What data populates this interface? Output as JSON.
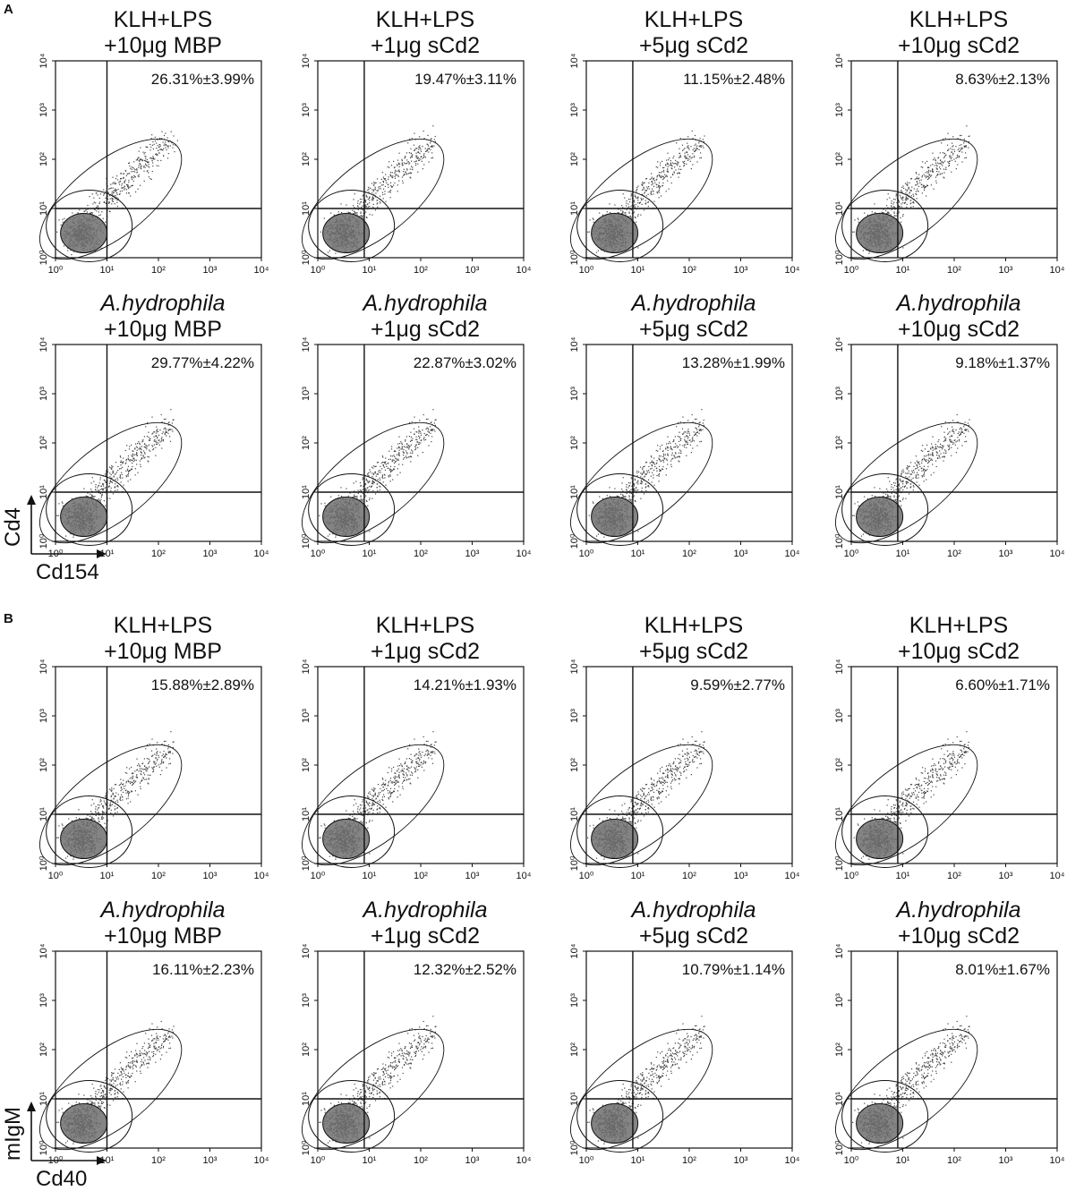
{
  "figure": {
    "panels": [
      {
        "letter": "A",
        "x_marker": "Cd154",
        "y_marker": "Cd4"
      },
      {
        "letter": "B",
        "x_marker": "Cd40",
        "y_marker": "mIgM"
      }
    ]
  },
  "chart_data": [
    {
      "type": "scatter",
      "panel": "A",
      "title": [
        "KLH+LPS",
        "+10μg MBP"
      ],
      "title_italic": false,
      "percentage": "26.31%±3.99%",
      "xlabel": "Cd154",
      "ylabel": "Cd4",
      "xscale": "log",
      "yscale": "log",
      "xlim": [
        1,
        10000
      ],
      "ylim": [
        1,
        10000
      ],
      "x_ticks": [
        "10⁰",
        "10¹",
        "10²",
        "10³",
        "10⁴"
      ],
      "y_ticks": [
        "10⁰",
        "10¹",
        "10²",
        "10³",
        "10⁴"
      ],
      "gate": {
        "x": 10,
        "y": 10
      }
    },
    {
      "type": "scatter",
      "panel": "A",
      "title": [
        "KLH+LPS",
        "+1μg sCd2"
      ],
      "title_italic": false,
      "percentage": "19.47%±3.11%",
      "xlabel": "Cd154",
      "ylabel": "Cd4",
      "xscale": "log",
      "yscale": "log",
      "xlim": [
        1,
        10000
      ],
      "ylim": [
        1,
        10000
      ],
      "x_ticks": [
        "10⁰",
        "10¹",
        "10²",
        "10³",
        "10⁴"
      ],
      "y_ticks": [
        "10⁰",
        "10¹",
        "10²",
        "10³",
        "10⁴"
      ],
      "gate": {
        "x": 8,
        "y": 10
      }
    },
    {
      "type": "scatter",
      "panel": "A",
      "title": [
        "KLH+LPS",
        "+5μg sCd2"
      ],
      "title_italic": false,
      "percentage": "11.15%±2.48%",
      "xlabel": "Cd154",
      "ylabel": "Cd4",
      "xscale": "log",
      "yscale": "log",
      "xlim": [
        1,
        10000
      ],
      "ylim": [
        1,
        10000
      ],
      "x_ticks": [
        "10⁰",
        "10¹",
        "10²",
        "10³",
        "10⁴"
      ],
      "y_ticks": [
        "10⁰",
        "10¹",
        "10²",
        "10³",
        "10⁴"
      ],
      "gate": {
        "x": 8,
        "y": 10
      }
    },
    {
      "type": "scatter",
      "panel": "A",
      "title": [
        "KLH+LPS",
        "+10μg sCd2"
      ],
      "title_italic": false,
      "percentage": "8.63%±2.13%",
      "xlabel": "Cd154",
      "ylabel": "Cd4",
      "xscale": "log",
      "yscale": "log",
      "xlim": [
        1,
        10000
      ],
      "ylim": [
        1,
        10000
      ],
      "x_ticks": [
        "10⁰",
        "10¹",
        "10²",
        "10³",
        "10⁴"
      ],
      "y_ticks": [
        "10⁰",
        "10¹",
        "10²",
        "10³",
        "10⁴"
      ],
      "gate": {
        "x": 8,
        "y": 10
      }
    },
    {
      "type": "scatter",
      "panel": "A",
      "title": [
        "A.hydrophila",
        "+10μg MBP"
      ],
      "title_italic": true,
      "percentage": "29.77%±4.22%",
      "xlabel": "Cd154",
      "ylabel": "Cd4",
      "xscale": "log",
      "yscale": "log",
      "xlim": [
        1,
        10000
      ],
      "ylim": [
        1,
        10000
      ],
      "x_ticks": [
        "10⁰",
        "10¹",
        "10²",
        "10³",
        "10⁴"
      ],
      "y_ticks": [
        "10⁰",
        "10¹",
        "10²",
        "10³",
        "10⁴"
      ],
      "gate": {
        "x": 10,
        "y": 10
      }
    },
    {
      "type": "scatter",
      "panel": "A",
      "title": [
        "A.hydrophila",
        "+1μg sCd2"
      ],
      "title_italic": true,
      "percentage": "22.87%±3.02%",
      "xlabel": "Cd154",
      "ylabel": "Cd4",
      "xscale": "log",
      "yscale": "log",
      "xlim": [
        1,
        10000
      ],
      "ylim": [
        1,
        10000
      ],
      "x_ticks": [
        "10⁰",
        "10¹",
        "10²",
        "10³",
        "10⁴"
      ],
      "y_ticks": [
        "10⁰",
        "10¹",
        "10²",
        "10³",
        "10⁴"
      ],
      "gate": {
        "x": 8,
        "y": 10
      }
    },
    {
      "type": "scatter",
      "panel": "A",
      "title": [
        "A.hydrophila",
        "+5μg sCd2"
      ],
      "title_italic": true,
      "percentage": "13.28%±1.99%",
      "xlabel": "Cd154",
      "ylabel": "Cd4",
      "xscale": "log",
      "yscale": "log",
      "xlim": [
        1,
        10000
      ],
      "ylim": [
        1,
        10000
      ],
      "x_ticks": [
        "10⁰",
        "10¹",
        "10²",
        "10³",
        "10⁴"
      ],
      "y_ticks": [
        "10⁰",
        "10¹",
        "10²",
        "10³",
        "10⁴"
      ],
      "gate": {
        "x": 8,
        "y": 10
      }
    },
    {
      "type": "scatter",
      "panel": "A",
      "title": [
        "A.hydrophila",
        "+10μg sCd2"
      ],
      "title_italic": true,
      "percentage": "9.18%±1.37%",
      "xlabel": "Cd154",
      "ylabel": "Cd4",
      "xscale": "log",
      "yscale": "log",
      "xlim": [
        1,
        10000
      ],
      "ylim": [
        1,
        10000
      ],
      "x_ticks": [
        "10⁰",
        "10¹",
        "10²",
        "10³",
        "10⁴"
      ],
      "y_ticks": [
        "10⁰",
        "10¹",
        "10²",
        "10³",
        "10⁴"
      ],
      "gate": {
        "x": 8,
        "y": 10
      }
    },
    {
      "type": "scatter",
      "panel": "B",
      "title": [
        "KLH+LPS",
        "+10μg MBP"
      ],
      "title_italic": false,
      "percentage": "15.88%±2.89%",
      "xlabel": "Cd40",
      "ylabel": "mIgM",
      "xscale": "log",
      "yscale": "log",
      "xlim": [
        1,
        10000
      ],
      "ylim": [
        1,
        10000
      ],
      "x_ticks": [
        "10⁰",
        "10¹",
        "10²",
        "10³",
        "10⁴"
      ],
      "y_ticks": [
        "10⁰",
        "10¹",
        "10²",
        "10³",
        "10⁴"
      ],
      "gate": {
        "x": 10,
        "y": 10
      }
    },
    {
      "type": "scatter",
      "panel": "B",
      "title": [
        "KLH+LPS",
        "+1μg sCd2"
      ],
      "title_italic": false,
      "percentage": "14.21%±1.93%",
      "xlabel": "Cd40",
      "ylabel": "mIgM",
      "xscale": "log",
      "yscale": "log",
      "xlim": [
        1,
        10000
      ],
      "ylim": [
        1,
        10000
      ],
      "x_ticks": [
        "10⁰",
        "10¹",
        "10²",
        "10³",
        "10⁴"
      ],
      "y_ticks": [
        "10⁰",
        "10¹",
        "10²",
        "10³",
        "10⁴"
      ],
      "gate": {
        "x": 8,
        "y": 10
      }
    },
    {
      "type": "scatter",
      "panel": "B",
      "title": [
        "KLH+LPS",
        "+5μg sCd2"
      ],
      "title_italic": false,
      "percentage": "9.59%±2.77%",
      "xlabel": "Cd40",
      "ylabel": "mIgM",
      "xscale": "log",
      "yscale": "log",
      "xlim": [
        1,
        10000
      ],
      "ylim": [
        1,
        10000
      ],
      "x_ticks": [
        "10⁰",
        "10¹",
        "10²",
        "10³",
        "10⁴"
      ],
      "y_ticks": [
        "10⁰",
        "10¹",
        "10²",
        "10³",
        "10⁴"
      ],
      "gate": {
        "x": 8,
        "y": 10
      }
    },
    {
      "type": "scatter",
      "panel": "B",
      "title": [
        "KLH+LPS",
        "+10μg sCd2"
      ],
      "title_italic": false,
      "percentage": "6.60%±1.71%",
      "xlabel": "Cd40",
      "ylabel": "mIgM",
      "xscale": "log",
      "yscale": "log",
      "xlim": [
        1,
        10000
      ],
      "ylim": [
        1,
        10000
      ],
      "x_ticks": [
        "10⁰",
        "10¹",
        "10²",
        "10³",
        "10⁴"
      ],
      "y_ticks": [
        "10⁰",
        "10¹",
        "10²",
        "10³",
        "10⁴"
      ],
      "gate": {
        "x": 8,
        "y": 10
      }
    },
    {
      "type": "scatter",
      "panel": "B",
      "title": [
        "A.hydrophila",
        "+10μg MBP"
      ],
      "title_italic": true,
      "percentage": "16.11%±2.23%",
      "xlabel": "Cd40",
      "ylabel": "mIgM",
      "xscale": "log",
      "yscale": "log",
      "xlim": [
        1,
        10000
      ],
      "ylim": [
        1,
        10000
      ],
      "x_ticks": [
        "10⁰",
        "10¹",
        "10²",
        "10³",
        "10⁴"
      ],
      "y_ticks": [
        "10⁰",
        "10¹",
        "10²",
        "10³",
        "10⁴"
      ],
      "gate": {
        "x": 10,
        "y": 10
      }
    },
    {
      "type": "scatter",
      "panel": "B",
      "title": [
        "A.hydrophila",
        "+1μg sCd2"
      ],
      "title_italic": true,
      "percentage": "12.32%±2.52%",
      "xlabel": "Cd40",
      "ylabel": "mIgM",
      "xscale": "log",
      "yscale": "log",
      "xlim": [
        1,
        10000
      ],
      "ylim": [
        1,
        10000
      ],
      "x_ticks": [
        "10⁰",
        "10¹",
        "10²",
        "10³",
        "10⁴"
      ],
      "y_ticks": [
        "10⁰",
        "10¹",
        "10²",
        "10³",
        "10⁴"
      ],
      "gate": {
        "x": 8,
        "y": 10
      }
    },
    {
      "type": "scatter",
      "panel": "B",
      "title": [
        "A.hydrophila",
        "+5μg sCd2"
      ],
      "title_italic": true,
      "percentage": "10.79%±1.14%",
      "xlabel": "Cd40",
      "ylabel": "mIgM",
      "xscale": "log",
      "yscale": "log",
      "xlim": [
        1,
        10000
      ],
      "ylim": [
        1,
        10000
      ],
      "x_ticks": [
        "10⁰",
        "10¹",
        "10²",
        "10³",
        "10⁴"
      ],
      "y_ticks": [
        "10⁰",
        "10¹",
        "10²",
        "10³",
        "10⁴"
      ],
      "gate": {
        "x": 8,
        "y": 10
      }
    },
    {
      "type": "scatter",
      "panel": "B",
      "title": [
        "A.hydrophila",
        "+10μg sCd2"
      ],
      "title_italic": true,
      "percentage": "8.01%±1.67%",
      "xlabel": "Cd40",
      "ylabel": "mIgM",
      "xscale": "log",
      "yscale": "log",
      "xlim": [
        1,
        10000
      ],
      "ylim": [
        1,
        10000
      ],
      "x_ticks": [
        "10⁰",
        "10¹",
        "10²",
        "10³",
        "10⁴"
      ],
      "y_ticks": [
        "10⁰",
        "10¹",
        "10²",
        "10³",
        "10⁴"
      ],
      "gate": {
        "x": 8,
        "y": 10
      }
    }
  ]
}
